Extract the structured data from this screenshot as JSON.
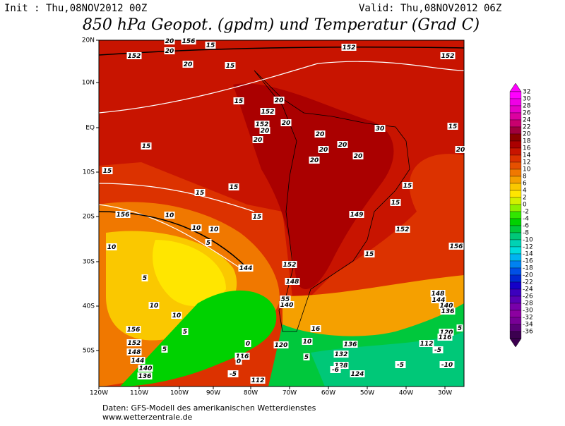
{
  "header": {
    "init": "Init : Thu,08NOV2012 00Z",
    "valid": "Valid: Thu,08NOV2012 06Z",
    "title": "850 hPa Geopot. (gpdm) und Temperatur (Grad C)"
  },
  "lat_labels": [
    "20N",
    "10N",
    "EQ",
    "10S",
    "20S",
    "30S",
    "40S",
    "50S"
  ],
  "lon_labels": [
    "120W",
    "110W",
    "100W",
    "90W",
    "80W",
    "70W",
    "60W",
    "50W",
    "40W",
    "30W"
  ],
  "colorbar": {
    "labels": [
      32,
      30,
      28,
      26,
      24,
      22,
      20,
      18,
      16,
      14,
      12,
      10,
      8,
      6,
      4,
      2,
      0,
      -2,
      -4,
      -6,
      -8,
      -10,
      -12,
      -14,
      -16,
      -18,
      -20,
      -22,
      -24,
      -26,
      -28,
      -30,
      -32,
      -34,
      -36
    ],
    "colors": [
      "#ff00ff",
      "#f000e6",
      "#e600c8",
      "#dc00a0",
      "#c8006e",
      "#a0003c",
      "#8c0000",
      "#aa0000",
      "#c81400",
      "#dc3200",
      "#e65000",
      "#f07800",
      "#f5a000",
      "#fac800",
      "#ffe600",
      "#d2f000",
      "#8cf000",
      "#32e600",
      "#00d200",
      "#00c83c",
      "#00c878",
      "#00d2b4",
      "#00dcdc",
      "#00b4f0",
      "#0082f0",
      "#0050e6",
      "#0028d2",
      "#1400c8",
      "#3c00be",
      "#5a00b4",
      "#7800aa",
      "#8c00a0",
      "#780096",
      "#5a0078",
      "#3c0050"
    ]
  },
  "contour_labels": [
    "20",
    "156",
    "15",
    "152",
    "20",
    "20",
    "15",
    "152",
    "152",
    "15",
    "152",
    "20",
    "20",
    "152",
    "20",
    "20",
    "15",
    "15",
    "20",
    "20",
    "20",
    "20",
    "20",
    "30",
    "15",
    "20",
    "15",
    "15",
    "15",
    "15",
    "156",
    "10",
    "15",
    "149",
    "152",
    "10",
    "10",
    "10",
    "5",
    "156",
    "15",
    "144",
    "5",
    "152",
    "148",
    "148",
    "144",
    "140",
    "136",
    "10",
    "10",
    "156",
    "5",
    "152",
    "148",
    "144",
    "140",
    "136",
    "5",
    "0",
    "116",
    "120",
    "10",
    "16",
    "5",
    "132",
    "128",
    "124",
    "136",
    "112",
    "-5",
    "-10",
    "112",
    "120",
    "116",
    "-5",
    "5",
    "0",
    "-5",
    "-6",
    "140",
    "55"
  ],
  "footer": [
    "Daten: GFS-Modell des amerikanischen Wetterdienstes",
    "www.wetterzentrale.de"
  ]
}
